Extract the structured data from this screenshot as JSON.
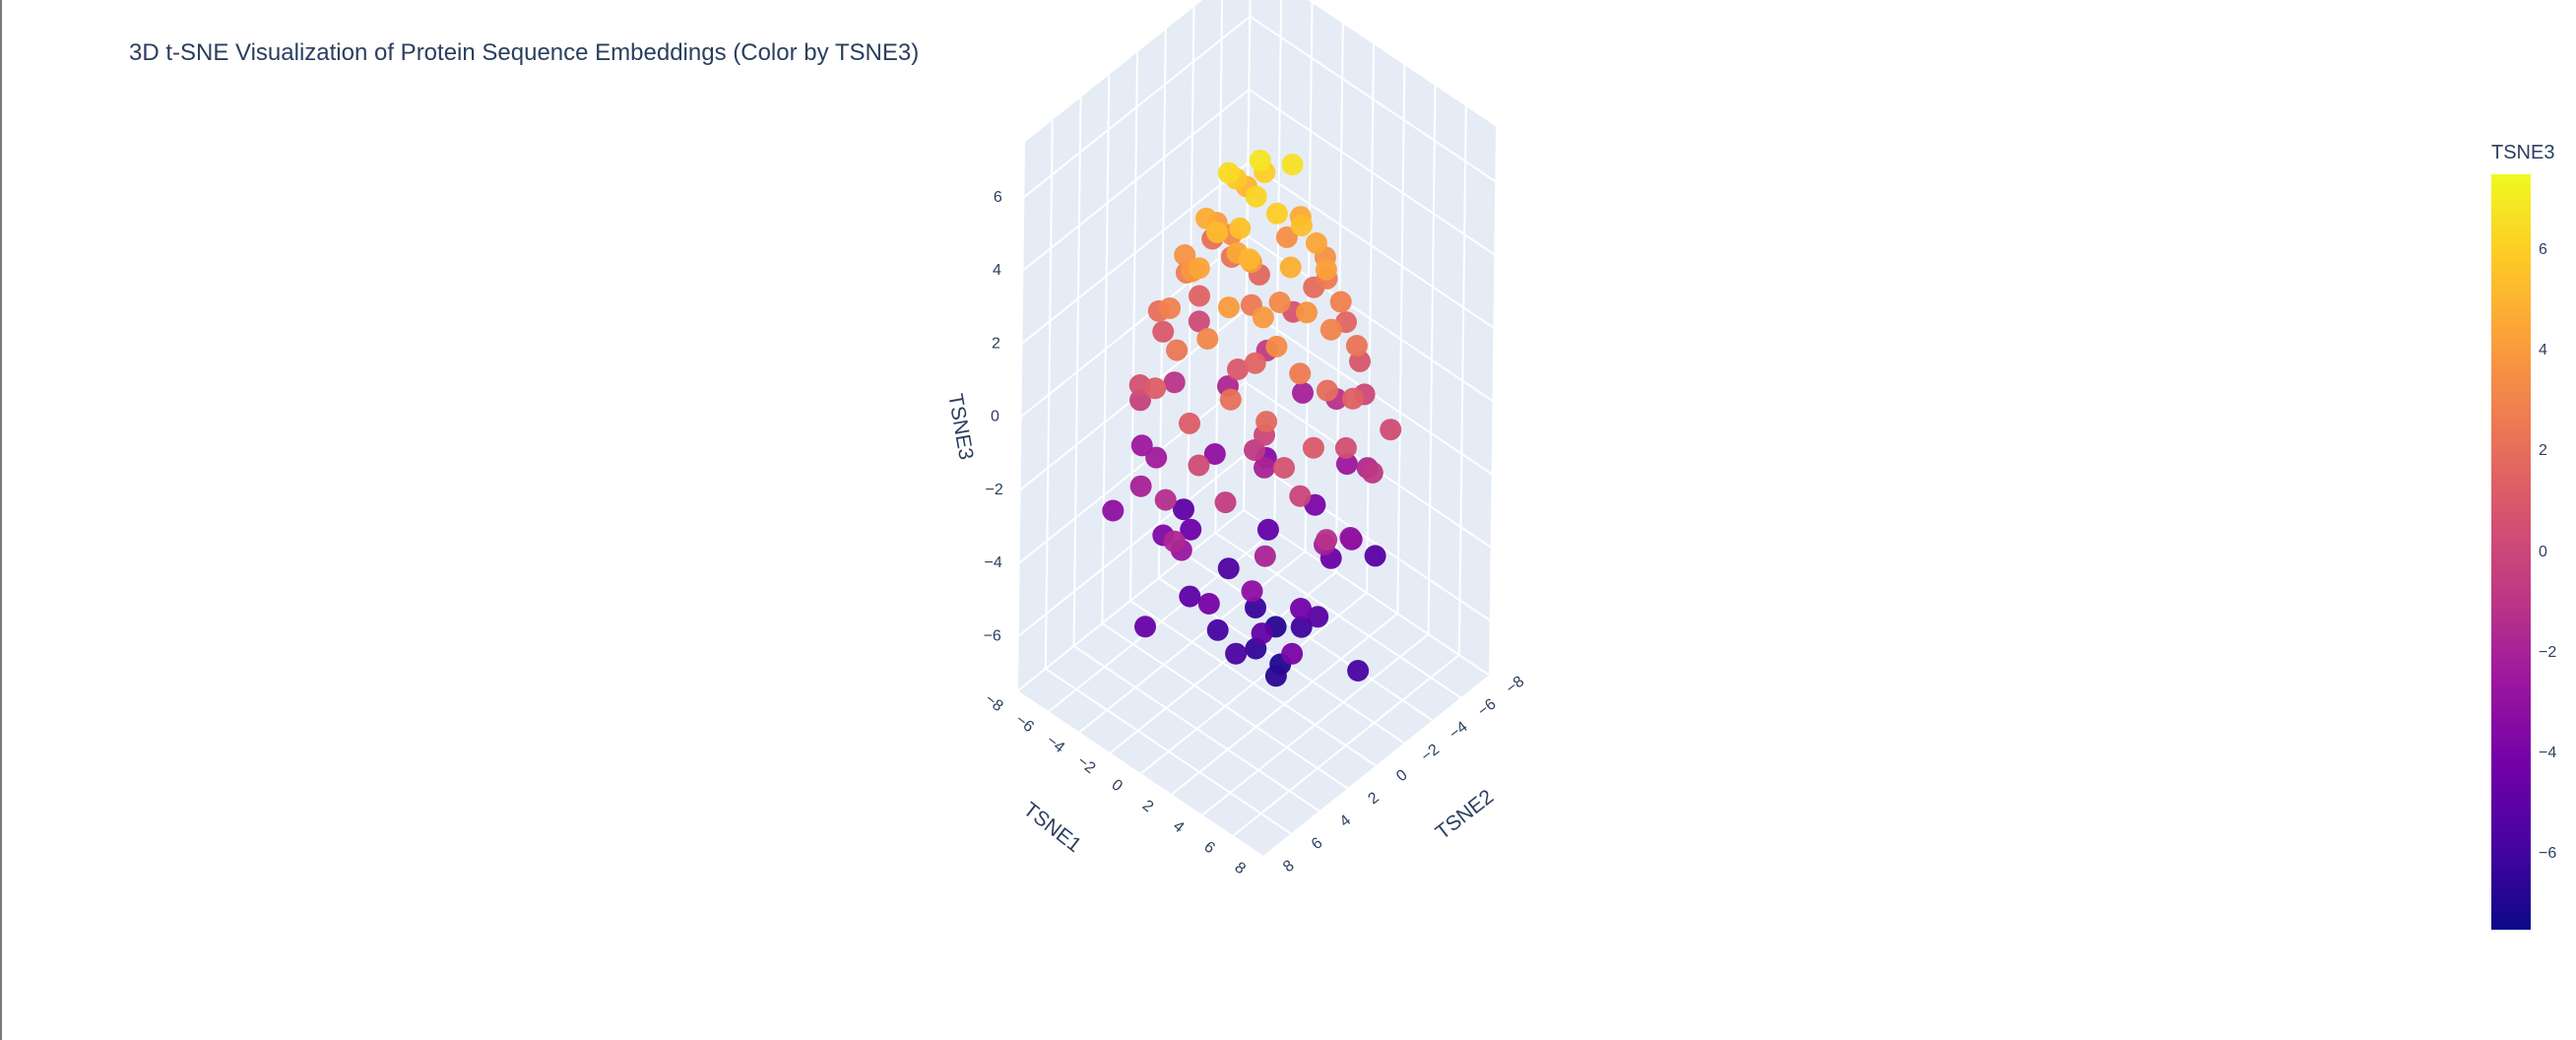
{
  "chart_data": {
    "type": "scatter",
    "subtype": "3d-scatter",
    "title": "3D t-SNE Visualization of Protein Sequence Embeddings (Color by TSNE3)",
    "axes": {
      "x": {
        "label": "TSNE1",
        "range": [
          -8,
          8
        ],
        "ticks": [
          "-8",
          "-6",
          "-4",
          "-2",
          "0",
          "2",
          "4",
          "6",
          "8"
        ]
      },
      "y": {
        "label": "TSNE2",
        "range": [
          -8,
          8
        ],
        "ticks": [
          "-8",
          "-6",
          "-4",
          "-2",
          "0",
          "2",
          "4",
          "6",
          "8"
        ]
      },
      "z": {
        "label": "TSNE3",
        "range": [
          -7.5,
          7.5
        ],
        "ticks": [
          "-6",
          "-4",
          "-2",
          "0",
          "2",
          "4",
          "6"
        ]
      }
    },
    "grid": true,
    "color_by": "TSNE3",
    "colorscale": [
      "#0d0887",
      "#46039f",
      "#7201a8",
      "#9c179e",
      "#bd3786",
      "#d8576b",
      "#ed7953",
      "#fb9f3a",
      "#fdca26",
      "#f0f921"
    ],
    "colorbar": {
      "title": "TSNE3",
      "range": [
        -7.5,
        7.5
      ],
      "ticks": [
        {
          "value": 6,
          "label": "6"
        },
        {
          "value": 4,
          "label": "4"
        },
        {
          "value": 2,
          "label": "2"
        },
        {
          "value": 0,
          "label": "0"
        },
        {
          "value": -2,
          "label": "−2"
        },
        {
          "value": -4,
          "label": "−4"
        },
        {
          "value": -6,
          "label": "−6"
        }
      ]
    },
    "points": [
      [
        0.0,
        0.0,
        6.8
      ],
      [
        1.0,
        -1.2,
        6.6
      ],
      [
        -1.2,
        0.9,
        6.4
      ],
      [
        0.5,
        0.8,
        6.2
      ],
      [
        -0.6,
        -1.0,
        6.0
      ],
      [
        1.5,
        0.4,
        5.9
      ],
      [
        -1.8,
        -0.3,
        5.7
      ],
      [
        0.2,
        1.6,
        5.5
      ],
      [
        2.1,
        -0.7,
        5.4
      ],
      [
        -0.9,
        2.0,
        5.2
      ],
      [
        1.1,
        1.9,
        5.0
      ],
      [
        -2.2,
        -1.5,
        5.0
      ],
      [
        2.6,
        0.6,
        4.8
      ],
      [
        -2.7,
        0.8,
        4.7
      ],
      [
        0.4,
        -2.5,
        4.6
      ],
      [
        1.8,
        -2.1,
        4.4
      ],
      [
        -1.4,
        2.7,
        4.3
      ],
      [
        3.0,
        -1.5,
        4.2
      ],
      [
        -3.1,
        -0.4,
        4.1
      ],
      [
        0.9,
        3.1,
        4.0
      ],
      [
        -0.3,
        0.2,
        4.0
      ],
      [
        2.4,
        2.3,
        3.9
      ],
      [
        -2.3,
        2.2,
        3.8
      ],
      [
        3.4,
        0.3,
        3.7
      ],
      [
        -3.6,
        1.3,
        3.6
      ],
      [
        1.3,
        -3.3,
        3.5
      ],
      [
        -1.1,
        -3.2,
        3.4
      ],
      [
        3.2,
        2.2,
        3.3
      ],
      [
        -3.5,
        -1.9,
        3.2
      ],
      [
        0.1,
        3.7,
        3.1
      ],
      [
        3.9,
        -0.9,
        3.0
      ],
      [
        -2.9,
        3.1,
        2.9
      ],
      [
        2.7,
        -2.9,
        2.8
      ],
      [
        -4.2,
        0.5,
        2.7
      ],
      [
        4.1,
        1.5,
        2.6
      ],
      [
        0.7,
        -4.1,
        2.5
      ],
      [
        -1.6,
        4.0,
        2.4
      ],
      [
        4.4,
        -2.2,
        2.3
      ],
      [
        -4.1,
        -2.6,
        2.2
      ],
      [
        2.0,
        4.1,
        2.1
      ],
      [
        -4.6,
        2.0,
        2.0
      ],
      [
        4.7,
        0.2,
        1.9
      ],
      [
        -0.5,
        -4.5,
        1.8
      ],
      [
        3.6,
        3.3,
        1.7
      ],
      [
        -3.3,
        -3.7,
        1.6
      ],
      [
        1.7,
        -4.4,
        1.5
      ],
      [
        -4.8,
        -1.1,
        1.4
      ],
      [
        5.0,
        -1.3,
        1.3
      ],
      [
        -2.6,
        4.4,
        1.2
      ],
      [
        0.0,
        4.8,
        1.1
      ],
      [
        5.3,
        1.8,
        1.0
      ],
      [
        -5.3,
        0.9,
        0.9
      ],
      [
        2.8,
        -4.2,
        0.8
      ],
      [
        -1.9,
        -4.6,
        0.7
      ],
      [
        4.5,
        3.0,
        0.6
      ],
      [
        -4.4,
        3.5,
        0.5
      ],
      [
        5.5,
        -0.3,
        0.4
      ],
      [
        0.9,
        5.1,
        0.3
      ],
      [
        -5.6,
        -2.0,
        0.2
      ],
      [
        3.3,
        -4.0,
        0.1
      ],
      [
        0.3,
        0.5,
        1.5
      ],
      [
        -0.8,
        -0.4,
        2.5
      ],
      [
        1.2,
        -0.2,
        3.2
      ],
      [
        -0.4,
        1.1,
        4.5
      ],
      [
        5.2,
        2.6,
        -0.1
      ],
      [
        -5.0,
        2.8,
        -0.3
      ],
      [
        2.2,
        4.6,
        -0.5
      ],
      [
        -3.2,
        -4.2,
        -0.6
      ],
      [
        5.6,
        -2.1,
        -0.8
      ],
      [
        -5.7,
        -0.4,
        -1.0
      ],
      [
        0.6,
        -5.0,
        -1.1
      ],
      [
        -1.3,
        5.0,
        -1.3
      ],
      [
        4.1,
        -3.4,
        -1.5
      ],
      [
        -4.6,
        -3.0,
        -1.6
      ],
      [
        3.9,
        3.6,
        -1.8
      ],
      [
        -3.9,
        3.9,
        -2.0
      ],
      [
        5.0,
        0.6,
        -2.1
      ],
      [
        -5.1,
        1.5,
        -2.3
      ],
      [
        1.6,
        -4.7,
        -2.5
      ],
      [
        -0.6,
        4.6,
        -2.6
      ],
      [
        4.5,
        -1.8,
        -2.8
      ],
      [
        -4.3,
        -1.8,
        -3.0
      ],
      [
        2.9,
        3.4,
        -3.1
      ],
      [
        -2.8,
        -3.8,
        -3.3
      ],
      [
        3.5,
        -3.0,
        -3.5
      ],
      [
        -3.5,
        2.7,
        -3.6
      ],
      [
        0.2,
        -4.0,
        -3.8
      ],
      [
        0.5,
        3.8,
        -4.0
      ],
      [
        3.8,
        0.9,
        -4.1
      ],
      [
        -3.9,
        0.3,
        -4.3
      ],
      [
        2.0,
        -3.2,
        -4.5
      ],
      [
        -1.8,
        -2.9,
        -4.7
      ],
      [
        2.4,
        2.1,
        -4.8
      ],
      [
        -2.1,
        2.3,
        -5.0
      ],
      [
        3.0,
        -1.2,
        -5.2
      ],
      [
        -2.6,
        -1.0,
        -5.4
      ],
      [
        1.1,
        2.5,
        -5.6
      ],
      [
        -0.9,
        1.6,
        -5.8
      ],
      [
        1.6,
        -1.6,
        -6.0
      ],
      [
        -1.2,
        -1.4,
        -6.2
      ],
      [
        0.3,
        0.2,
        -6.4
      ],
      [
        1.9,
        0.5,
        -6.6
      ],
      [
        -0.6,
        -2.2,
        -6.8
      ],
      [
        0.9,
        -0.9,
        -7.0
      ],
      [
        -5.9,
        -3.2,
        2.0
      ],
      [
        6.1,
        -2.8,
        0.3
      ],
      [
        0.2,
        6.0,
        -1.7
      ],
      [
        -6.3,
        1.2,
        -2.4
      ],
      [
        6.3,
        1.9,
        -1.2
      ],
      [
        -2.3,
        -5.8,
        -2.0
      ],
      [
        5.8,
        3.7,
        -3.9
      ],
      [
        -1.7,
        5.9,
        -4.6
      ],
      [
        2.5,
        -5.8,
        -5.1
      ],
      [
        -5.4,
        4.2,
        -3.0
      ],
      [
        6.0,
        -0.8,
        -5.7
      ],
      [
        -6.0,
        -1.5,
        -4.9
      ],
      [
        -0.2,
        -0.8,
        -1.9
      ],
      [
        0.6,
        0.8,
        -0.7
      ],
      [
        -1.0,
        0.3,
        0.9
      ],
      [
        1.4,
        1.0,
        0.0
      ]
    ]
  }
}
